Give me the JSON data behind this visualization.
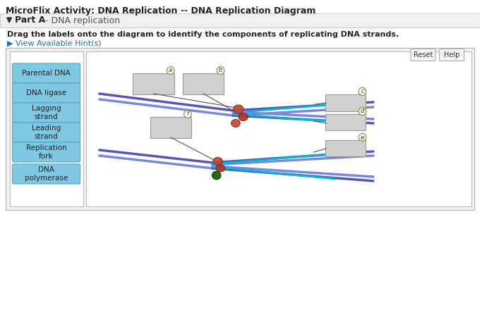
{
  "title": "MicroFlix Activity: DNA Replication -- DNA Replication Diagram",
  "part_label": "Part A",
  "part_sub": " - DNA replication",
  "instruction": "Drag the labels onto the diagram to identify the components of replicating DNA strands.",
  "hint_text": "▶ View Available Hint(s)",
  "bg_color": "#ffffff",
  "part_bar_color": "#efefef",
  "button_color": "#7ec8e3",
  "button_border_color": "#4aa8c8",
  "button_text_color": "#222222",
  "button_labels": [
    "Parental DNA",
    "DNA ligase",
    "Lagging\nstrand",
    "Leading\nstrand",
    "Replication\nfork",
    "DNA\npolymerase"
  ],
  "reset_btn": "Reset",
  "help_btn": "Help",
  "strand_blue1": "#5555bb",
  "strand_blue2": "#7788dd",
  "strand_cyan": "#00b8d4",
  "poly_color1": "#c44433",
  "poly_color2": "#bb3322",
  "green_node_color": "#1b6e20",
  "line_color": "#555555",
  "box_fill": "#d0d0d0",
  "box_edge": "#999999",
  "circle_edge": "#888833"
}
